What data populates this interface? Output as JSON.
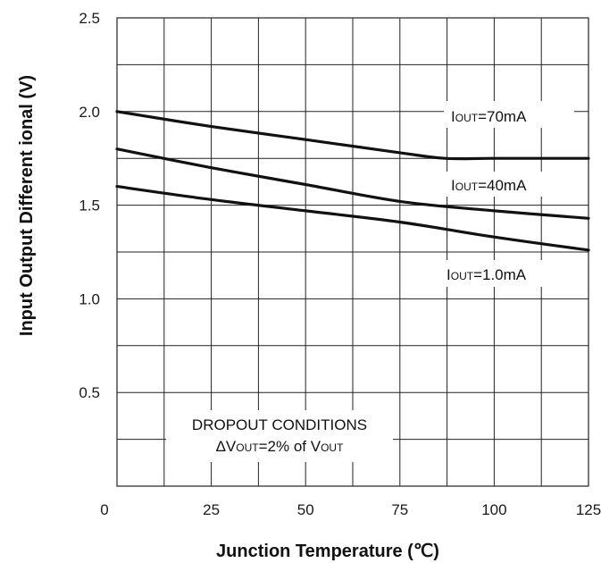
{
  "chart_data": {
    "type": "line",
    "xlabel": "Junction Temperature (℃)",
    "ylabel": "Input Output Different ional (V)",
    "xlim": [
      0,
      125
    ],
    "ylim": [
      0,
      2.5
    ],
    "x_ticks": [
      0,
      25,
      50,
      75,
      100,
      125
    ],
    "y_ticks": [
      0.5,
      1.0,
      1.5,
      2.0,
      2.5
    ],
    "y_tick_labels": [
      "0.5",
      "1.0",
      "1.5",
      "2.0",
      "2.5"
    ],
    "grid": true,
    "series": [
      {
        "name": "IOUT=70mA",
        "label_main": "I",
        "label_sub": "OUT",
        "label_rest": "=70mA",
        "x": [
          0,
          25,
          50,
          75,
          87,
          100,
          125
        ],
        "y": [
          2.0,
          1.92,
          1.85,
          1.78,
          1.75,
          1.75,
          1.75
        ]
      },
      {
        "name": "IOUT=40mA",
        "label_main": "I",
        "label_sub": "OUT",
        "label_rest": "=40mA",
        "x": [
          0,
          25,
          50,
          75,
          100,
          125
        ],
        "y": [
          1.8,
          1.7,
          1.61,
          1.52,
          1.47,
          1.43
        ]
      },
      {
        "name": "IOUT=1.0mA",
        "label_main": "I",
        "label_sub": "OUT",
        "label_rest": "=1.0mA",
        "x": [
          0,
          25,
          50,
          75,
          100,
          125
        ],
        "y": [
          1.6,
          1.53,
          1.47,
          1.41,
          1.33,
          1.26
        ]
      }
    ],
    "annotation": {
      "line1": "DROPOUT CONDITIONS",
      "line2_prefix": "ΔV",
      "line2_sub1": "OUT",
      "line2_mid": "=2% of V",
      "line2_sub2": "OUT"
    },
    "colors": {
      "line": "#111111",
      "grid": "#222222",
      "background": "#ffffff"
    }
  }
}
